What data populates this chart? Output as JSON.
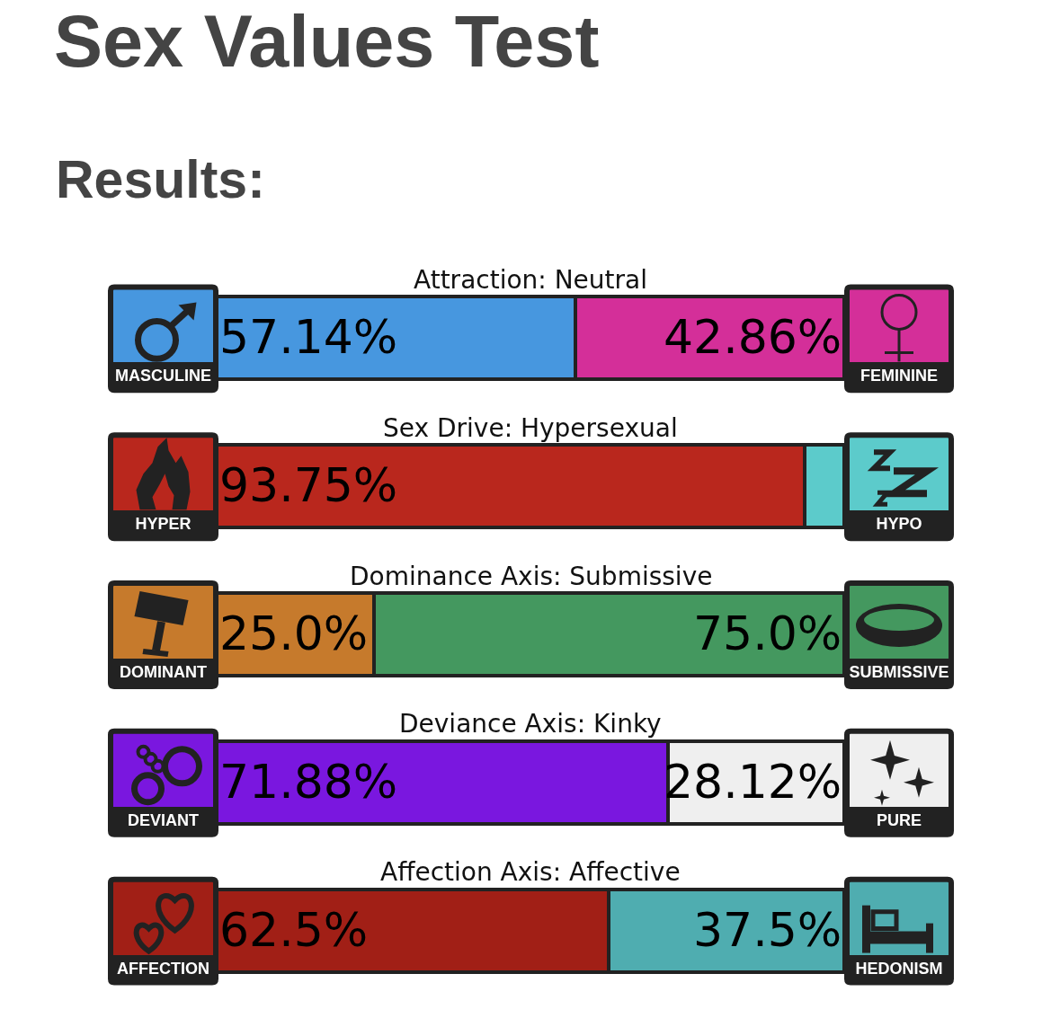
{
  "chart_data": {
    "type": "bar",
    "orientation": "horizontal",
    "stacked": true,
    "title": "Sex Values Test",
    "subtitle": "Results:",
    "categories": [
      "Attraction: Neutral",
      "Sex Drive: Hypersexual",
      "Dominance Axis: Submissive",
      "Deviance Axis: Kinky",
      "Affection Axis: Affective"
    ],
    "series": [
      {
        "colors": [
          "#4797df",
          "#b9271d",
          "#c67a2c",
          "#7a17df",
          "#a11f16"
        ],
        "values": [
          57.14,
          93.75,
          25.0,
          71.88,
          62.5
        ],
        "value_labels": [
          "57.14%",
          "93.75%",
          "25.0%",
          "71.88%",
          "62.5%"
        ]
      },
      {
        "colors": [
          "#d42f99",
          "#5ccbcb",
          "#44985f",
          "#efefef",
          "#4fadb0"
        ],
        "values": [
          42.86,
          6.25,
          75.0,
          28.12,
          37.5
        ],
        "value_labels": [
          "42.86%",
          null,
          "75.0%",
          "28.12%",
          "37.5%"
        ]
      }
    ],
    "xlim": [
      0,
      100
    ],
    "tick_labels": "y",
    "annotations": [
      "MASCULINE",
      "FEMININE",
      "HYPER",
      "HYPO",
      "DOMINANT",
      "SUBMISSIVE",
      "DEVIANT",
      "PURE",
      "AFFECTION",
      "HEDONISM"
    ]
  }
}
